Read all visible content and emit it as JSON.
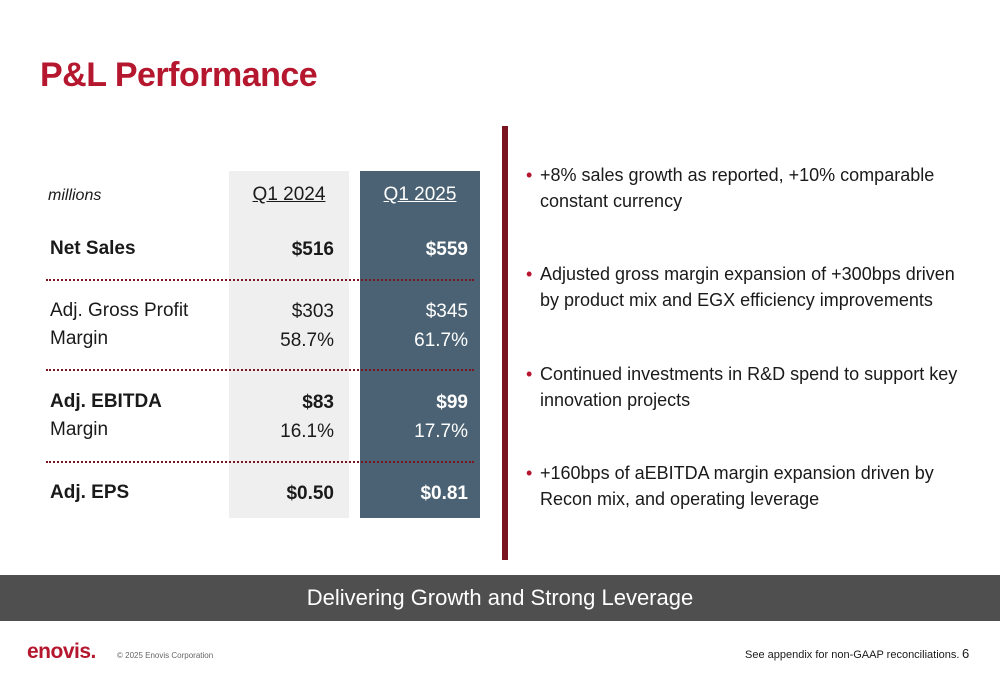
{
  "title": "P&L Performance",
  "table": {
    "units_label": "millions",
    "columns": [
      "Q1 2024",
      "Q1 2025"
    ],
    "rows": [
      {
        "label": "Net Sales",
        "label2": "",
        "q1_2024": "$516",
        "q1_2024_b": "",
        "q1_2025": "$559",
        "q1_2025_b": ""
      },
      {
        "label": "Adj. Gross Profit",
        "label2": "Margin",
        "q1_2024": "$303",
        "q1_2024_b": "58.7%",
        "q1_2025": "$345",
        "q1_2025_b": "61.7%"
      },
      {
        "label": "Adj. EBITDA",
        "label2": "Margin",
        "q1_2024": "$83",
        "q1_2024_b": "16.1%",
        "q1_2025": "$99",
        "q1_2025_b": "17.7%"
      },
      {
        "label": "Adj. EPS",
        "label2": "",
        "q1_2024": "$0.50",
        "q1_2024_b": "",
        "q1_2025": "$0.81",
        "q1_2025_b": ""
      }
    ]
  },
  "bullets": [
    {
      "line1": "+8% sales growth as reported, +10% comparable",
      "line2": "constant currency"
    },
    {
      "line1": "Adjusted gross margin expansion of +300bps driven",
      "line2": "by product mix and EGX efficiency improvements"
    },
    {
      "line1": "Continued investments in R&D spend to support key",
      "line2": "innovation projects"
    },
    {
      "line1": "+160bps of aEBITDA margin expansion driven by",
      "line2": "Recon mix, and operating leverage"
    }
  ],
  "banner": "Delivering Growth and Strong Leverage",
  "footer": {
    "logo": "enovis",
    "logo_dot": ".",
    "copyright": "© 2025 Enovis Corporation",
    "note": "See appendix for non-GAAP reconciliations.",
    "page": "6"
  },
  "colors": {
    "title_red": "#b5172f",
    "accent_maroon": "#7a1420",
    "q1_2025_column": "#4a6273",
    "q1_2024_column": "#efefef",
    "banner": "#4f4f4f"
  }
}
